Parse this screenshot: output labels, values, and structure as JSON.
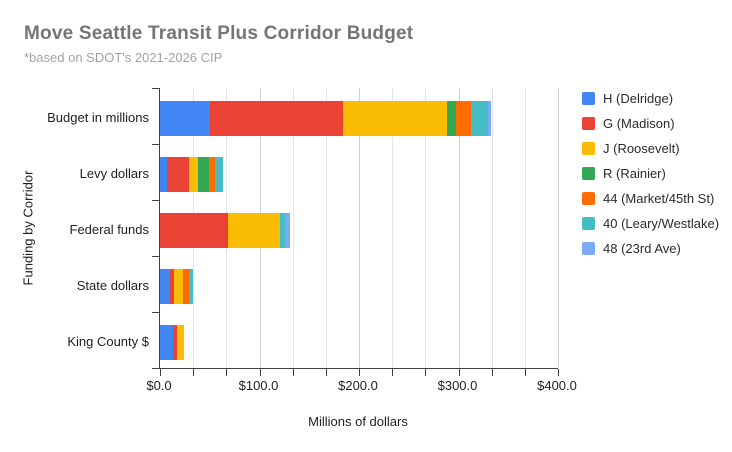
{
  "header": {
    "title": "Move Seattle Transit Plus Corridor Budget",
    "subtitle": "*based on SDOT's 2021-2026 CIP"
  },
  "chart_data": {
    "type": "bar",
    "orientation": "horizontal",
    "stacked": true,
    "title": "Move Seattle Transit Plus Corridor Budget",
    "subtitle": "*based on SDOT's 2021-2026 CIP",
    "categories": [
      "Budget in millions",
      "Levy dollars",
      "Federal funds",
      "State dollars",
      "King County $"
    ],
    "series": [
      {
        "name": "H (Delridge)",
        "color": "#4285F4",
        "values": [
          50,
          7,
          0,
          10,
          13
        ]
      },
      {
        "name": "G (Madison)",
        "color": "#EA4335",
        "values": [
          134,
          22,
          68,
          4,
          4
        ]
      },
      {
        "name": "J (Roosevelt)",
        "color": "#FBBC04",
        "values": [
          104,
          9.5,
          52.5,
          9.5,
          7
        ]
      },
      {
        "name": "R (Rainier)",
        "color": "#34A853",
        "values": [
          9,
          10.5,
          0,
          0,
          0
        ]
      },
      {
        "name": "44 (Market/45th St)",
        "color": "#FF6D01",
        "values": [
          15.5,
          6.5,
          0,
          5.5,
          0
        ]
      },
      {
        "name": "40 (Leary/Westlake)",
        "color": "#46BDC6",
        "values": [
          17,
          8,
          5,
          4.5,
          0
        ]
      },
      {
        "name": "48 (23rd Ave)",
        "color": "#7BAAF7",
        "values": [
          3,
          0,
          5,
          0,
          0
        ]
      }
    ],
    "xlabel": "Millions of dollars",
    "ylabel": "Funding by Corridor",
    "xlim": [
      0,
      400
    ],
    "x_tick_labels": [
      "$0.0",
      "$100.0",
      "$200.0",
      "$300.0",
      "$400.0"
    ],
    "minor_gridline_divisions": 12,
    "grid": true,
    "legend_position": "right"
  }
}
